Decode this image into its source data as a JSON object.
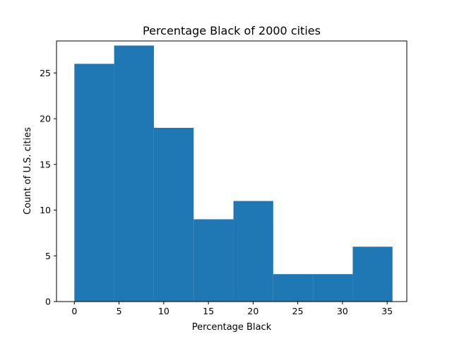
{
  "chart_data": {
    "type": "bar",
    "title": "Percentage Black of 2000 cities",
    "xlabel": "Percentage Black",
    "ylabel": "Count of U.S. cities",
    "bar_color": "#1f77b4",
    "xlim": [
      -2.0,
      37.2
    ],
    "ylim": [
      0,
      28.5
    ],
    "bin_edges": [
      0.0,
      4.45,
      8.9,
      13.35,
      17.8,
      22.25,
      26.7,
      31.15,
      35.6
    ],
    "values": [
      26,
      28,
      19,
      9,
      11,
      3,
      3,
      6
    ],
    "x_ticks": [
      0,
      5,
      10,
      15,
      20,
      25,
      30,
      35
    ],
    "x_tick_labels": [
      "0",
      "5",
      "10",
      "15",
      "20",
      "25",
      "30",
      "35"
    ],
    "y_ticks": [
      0,
      5,
      10,
      15,
      20,
      25
    ],
    "y_tick_labels": [
      "0",
      "5",
      "10",
      "15",
      "20",
      "25"
    ],
    "grid": false,
    "legend": "none"
  }
}
